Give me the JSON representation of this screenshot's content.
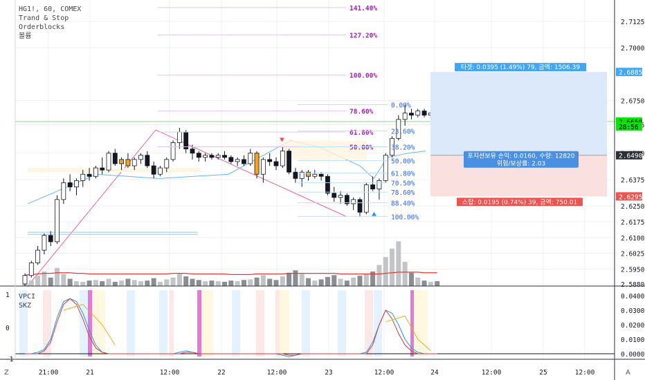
{
  "legend": {
    "symbol": "HG1!, 60, COMEX",
    "indicators": [
      "Trand & Stop",
      "Orderblocks",
      "볼륨"
    ]
  },
  "sub_legend": [
    "VPCI",
    "SKZ"
  ],
  "corner_left": "Z",
  "corner_right": "A",
  "colors": {
    "up": "#787b86",
    "down": "#131722",
    "grid": "#eef0f3",
    "fib_purple": "#9c27b0",
    "fib_blue": "#2962ff",
    "target_fill": "#dbe9fa",
    "stop_fill": "#fbe0e0",
    "target_label": "#42a5f5",
    "stop_label": "#ef5350",
    "price_label": "#2c2f36",
    "current_bg": "#00e600"
  },
  "chart_data": [
    {
      "type": "candlestick",
      "title": "HG1!, 60, COMEX",
      "y_axis": {
        "ticks": [
          "2.7125",
          "2.7000",
          "2.6750",
          "2.6635",
          "2.6500",
          "2.6375",
          "2.6250",
          "2.6175",
          "2.6100",
          "2.6025",
          "2.5950",
          "2.5880"
        ],
        "range": [
          2.587,
          2.72
        ],
        "price_labels": [
          {
            "text": "2.6885",
            "value": 2.6885,
            "style": "blue"
          },
          {
            "text": "2.6650",
            "value": 2.665,
            "style": "current"
          },
          {
            "text": "28:56",
            "value": 2.6627,
            "style": "current"
          },
          {
            "text": "2.6490",
            "value": 2.649,
            "style": "dark"
          },
          {
            "text": "2.6295",
            "value": 2.6295,
            "style": "red"
          }
        ]
      },
      "x_axis": {
        "ticks": [
          "21:00",
          "21",
          "12:00",
          "22",
          "12:00",
          "23",
          "12:00",
          "24",
          "12:00",
          "25",
          "12:00",
          "21:00"
        ]
      },
      "fib_levels_upper": [
        {
          "label": "141.40%",
          "value": 2.719
        },
        {
          "label": "127.20%",
          "value": 2.706
        },
        {
          "label": "100.00%",
          "value": 2.687
        },
        {
          "label": "78.60%",
          "value": 2.67
        },
        {
          "label": "61.80%",
          "value": 2.66
        },
        {
          "label": "50.00%",
          "value": 2.653
        }
      ],
      "fib_levels_lower": [
        {
          "label": "0.00%",
          "value": 2.673
        },
        {
          "label": "23.60%",
          "value": 2.6605
        },
        {
          "label": "38.20%",
          "value": 2.653
        },
        {
          "label": "50.00%",
          "value": 2.6465
        },
        {
          "label": "61.80%",
          "value": 2.6405
        },
        {
          "label": "70.50%",
          "value": 2.636
        },
        {
          "label": "78.60%",
          "value": 2.6315
        },
        {
          "label": "88.40%",
          "value": 2.6265
        },
        {
          "label": "100.00%",
          "value": 2.62
        }
      ],
      "position": {
        "target_label": "타겟: 0.0395 (1.49%) 79, 금액: 1506.39",
        "entry_label_1": "포지션보유 손익: 0.0160, 수량: 12820",
        "entry_label_2": "위험/보상률: 2.03",
        "stop_label": "스탑: 0.0195 (0.74%) 39, 금액: 750.01",
        "target": 2.6885,
        "entry": 2.649,
        "stop": 2.6295
      },
      "candles": [
        [
          2.588,
          2.593,
          2.587,
          2.592
        ],
        [
          2.592,
          2.599,
          2.591,
          2.598
        ],
        [
          2.598,
          2.606,
          2.597,
          2.604
        ],
        [
          2.604,
          2.612,
          2.602,
          2.611
        ],
        [
          2.611,
          2.613,
          2.606,
          2.608
        ],
        [
          2.608,
          2.63,
          2.607,
          2.628
        ],
        [
          2.628,
          2.638,
          2.626,
          2.636
        ],
        [
          2.636,
          2.64,
          2.632,
          2.634
        ],
        [
          2.634,
          2.638,
          2.63,
          2.637
        ],
        [
          2.637,
          2.642,
          2.634,
          2.64
        ],
        [
          2.64,
          2.643,
          2.637,
          2.639
        ],
        [
          2.639,
          2.644,
          2.638,
          2.643
        ],
        [
          2.643,
          2.648,
          2.64,
          2.642
        ],
        [
          2.642,
          2.651,
          2.641,
          2.65
        ],
        [
          2.65,
          2.652,
          2.644,
          2.645
        ],
        [
          2.645,
          2.648,
          2.642,
          2.647
        ],
        [
          2.647,
          2.65,
          2.643,
          2.644
        ],
        [
          2.644,
          2.648,
          2.642,
          2.647
        ],
        [
          2.647,
          2.65,
          2.645,
          2.649
        ],
        [
          2.649,
          2.651,
          2.643,
          2.644
        ],
        [
          2.644,
          2.646,
          2.638,
          2.64
        ],
        [
          2.64,
          2.644,
          2.639,
          2.643
        ],
        [
          2.643,
          2.648,
          2.641,
          2.647
        ],
        [
          2.647,
          2.656,
          2.646,
          2.655
        ],
        [
          2.655,
          2.662,
          2.652,
          2.66
        ],
        [
          2.66,
          2.661,
          2.65,
          2.652
        ],
        [
          2.652,
          2.654,
          2.647,
          2.65
        ],
        [
          2.65,
          2.651,
          2.646,
          2.648
        ],
        [
          2.648,
          2.65,
          2.646,
          2.649
        ],
        [
          2.649,
          2.65,
          2.647,
          2.648
        ],
        [
          2.648,
          2.65,
          2.647,
          2.649
        ],
        [
          2.649,
          2.651,
          2.647,
          2.648
        ],
        [
          2.648,
          2.649,
          2.645,
          2.646
        ],
        [
          2.646,
          2.648,
          2.644,
          2.647
        ],
        [
          2.647,
          2.649,
          2.644,
          2.645
        ],
        [
          2.645,
          2.652,
          2.644,
          2.65
        ],
        [
          2.65,
          2.651,
          2.638,
          2.64
        ],
        [
          2.64,
          2.648,
          2.636,
          2.647
        ],
        [
          2.647,
          2.65,
          2.644,
          2.646
        ],
        [
          2.646,
          2.648,
          2.642,
          2.644
        ],
        [
          2.644,
          2.653,
          2.643,
          2.651
        ],
        [
          2.651,
          2.652,
          2.64,
          2.641
        ],
        [
          2.641,
          2.643,
          2.636,
          2.638
        ],
        [
          2.638,
          2.642,
          2.634,
          2.641
        ],
        [
          2.641,
          2.642,
          2.637,
          2.639
        ],
        [
          2.639,
          2.642,
          2.638,
          2.64
        ],
        [
          2.64,
          2.641,
          2.637,
          2.639
        ],
        [
          2.639,
          2.64,
          2.63,
          2.631
        ],
        [
          2.631,
          2.634,
          2.627,
          2.629
        ],
        [
          2.629,
          2.632,
          2.626,
          2.63
        ],
        [
          2.63,
          2.631,
          2.625,
          2.626
        ],
        [
          2.626,
          2.629,
          2.623,
          2.628
        ],
        [
          2.628,
          2.629,
          2.62,
          2.622
        ],
        [
          2.622,
          2.636,
          2.621,
          2.635
        ],
        [
          2.635,
          2.639,
          2.632,
          2.633
        ],
        [
          2.633,
          2.638,
          2.628,
          2.637
        ],
        [
          2.637,
          2.65,
          2.636,
          2.649
        ],
        [
          2.649,
          2.658,
          2.648,
          2.657
        ],
        [
          2.657,
          2.668,
          2.656,
          2.666
        ],
        [
          2.666,
          2.673,
          2.663,
          2.669
        ],
        [
          2.669,
          2.671,
          2.666,
          2.668
        ],
        [
          2.668,
          2.671,
          2.667,
          2.67
        ],
        [
          2.67,
          2.671,
          2.667,
          2.668
        ],
        [
          2.668,
          2.67,
          2.666,
          2.669
        ],
        [
          2.669,
          2.67,
          2.664,
          2.665
        ]
      ],
      "volume": [
        6,
        9,
        17,
        24,
        14,
        30,
        20,
        12,
        8,
        7,
        9,
        10,
        8,
        12,
        7,
        9,
        12,
        10,
        8,
        9,
        13,
        7,
        11,
        14,
        20,
        16,
        12,
        10,
        8,
        9,
        8,
        7,
        9,
        8,
        10,
        11,
        14,
        18,
        12,
        10,
        16,
        22,
        26,
        20,
        13,
        9,
        11,
        15,
        18,
        12,
        9,
        14,
        17,
        20,
        24,
        35,
        48,
        62,
        74,
        40,
        22,
        14,
        9,
        7,
        8
      ],
      "volume_range": [
        0,
        80
      ],
      "ma_line": [
        18,
        19,
        20,
        21,
        21,
        22,
        22,
        22,
        21,
        21,
        20,
        20,
        20,
        20,
        20,
        20,
        20,
        20,
        20,
        20,
        20,
        20,
        20,
        21,
        21,
        21,
        20,
        20,
        20,
        20,
        20,
        20,
        19,
        19,
        19,
        19,
        20,
        20,
        20,
        20,
        20,
        21,
        21,
        21,
        21,
        21,
        21,
        21,
        21,
        20,
        20,
        20,
        20,
        20,
        20,
        20,
        21,
        22,
        23,
        23,
        23,
        23,
        22,
        22,
        22
      ]
    },
    {
      "type": "line",
      "title": "VPCI / SKZ",
      "y_left_ticks": [
        "1",
        "0",
        "-1"
      ],
      "y_right_ticks": [
        "0.0400",
        "0.0300",
        "0.0200",
        "0.0100",
        "0.0000"
      ],
      "series": [
        {
          "name": "VPCI",
          "color": "#2196f3",
          "values": [
            0.0,
            0.0,
            0.001,
            0.003,
            0.01,
            0.025,
            0.036,
            0.038,
            0.036,
            0.028,
            0.016,
            0.006,
            0.001,
            0.0,
            0.0,
            0.0,
            0.0,
            0.0,
            0.0,
            0.0,
            0.0,
            0.0,
            0.0,
            0.0,
            0.001,
            0.002,
            0.001,
            0.0,
            0.0,
            0.0,
            0.0,
            0.0,
            0.0,
            0.0,
            0.0,
            0.0,
            0.0,
            0.0,
            0.0,
            0.0,
            -0.001,
            -0.002,
            -0.001,
            0.0,
            0.0,
            0.0,
            0.0,
            0.0,
            0.0,
            0.0,
            0.0,
            0.0,
            0.0,
            0.001,
            0.008,
            0.02,
            0.03,
            0.028,
            0.02,
            0.01,
            0.004,
            0.001,
            0.0,
            0.0,
            0.0
          ]
        },
        {
          "name": "SKZ",
          "color": "#e53935",
          "values": [
            0.0,
            0.0,
            0.0,
            0.002,
            0.008,
            0.022,
            0.034,
            0.038,
            0.034,
            0.024,
            0.012,
            0.004,
            0.001,
            0.0,
            0.0,
            0.0,
            0.0,
            0.0,
            0.0,
            0.0,
            0.0,
            0.0,
            0.0,
            0.0,
            0.0,
            0.001,
            0.001,
            0.0,
            0.0,
            0.0,
            0.0,
            0.0,
            0.0,
            0.0,
            0.0,
            0.0,
            0.0,
            0.0,
            0.0,
            0.0,
            0.0,
            -0.001,
            -0.001,
            0.0,
            0.0,
            0.0,
            0.0,
            0.0,
            0.0,
            0.0,
            0.0,
            0.0,
            0.0,
            0.0,
            0.006,
            0.02,
            0.03,
            0.024,
            0.014,
            0.006,
            0.002,
            0.0,
            0.0,
            0.0,
            0.0
          ]
        }
      ]
    }
  ]
}
